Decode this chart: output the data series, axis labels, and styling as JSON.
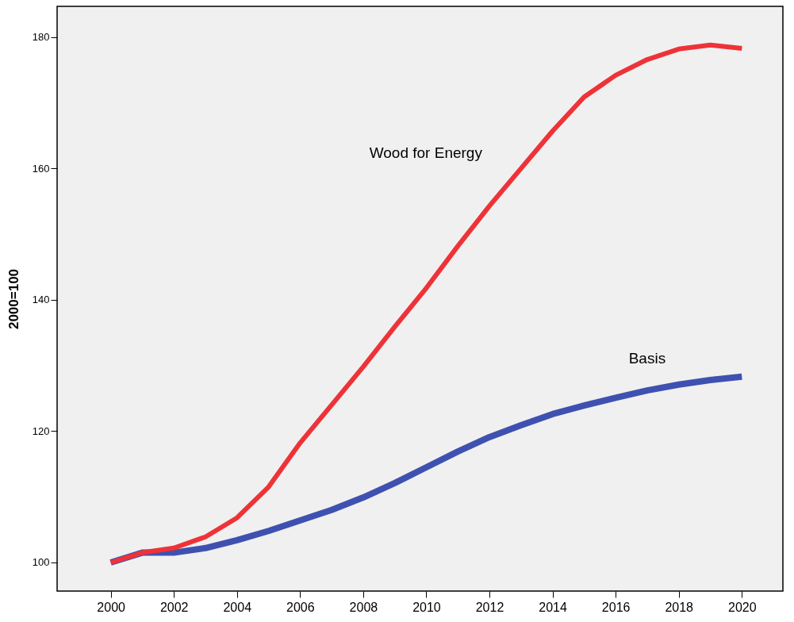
{
  "chart_data": {
    "type": "line",
    "ylabel": "2000=100",
    "x": [
      2000,
      2001,
      2002,
      2003,
      2004,
      2005,
      2006,
      2007,
      2008,
      2009,
      2010,
      2011,
      2012,
      2013,
      2014,
      2015,
      2016,
      2017,
      2018,
      2019,
      2020
    ],
    "series": [
      {
        "name": "Wood for Energy",
        "color": "#ee3338",
        "values": [
          100,
          101.5,
          102.2,
          103.9,
          106.8,
          111.5,
          118.2,
          124,
          129.8,
          135.9,
          141.8,
          148.2,
          154.3,
          160,
          165.7,
          170.9,
          174.2,
          176.6,
          178.2,
          178.8,
          178.3
        ]
      },
      {
        "name": "Basis",
        "color": "#3f51b0",
        "values": [
          100,
          101.5,
          101.5,
          102.2,
          103.4,
          104.8,
          106.4,
          108,
          109.9,
          112.1,
          114.5,
          116.9,
          119.1,
          120.9,
          122.6,
          123.9,
          125.1,
          126.2,
          127.1,
          127.8,
          128.3
        ]
      }
    ],
    "xlim": [
      1998.3,
      2021.3
    ],
    "xticks": [
      2000,
      2002,
      2004,
      2006,
      2008,
      2010,
      2012,
      2014,
      2016,
      2018,
      2020
    ],
    "ylim": [
      95.65,
      184.7
    ],
    "yticks": [
      100,
      120,
      140,
      160,
      180
    ],
    "grid": false,
    "legend": false,
    "marker": "none",
    "line_style": "solid"
  }
}
